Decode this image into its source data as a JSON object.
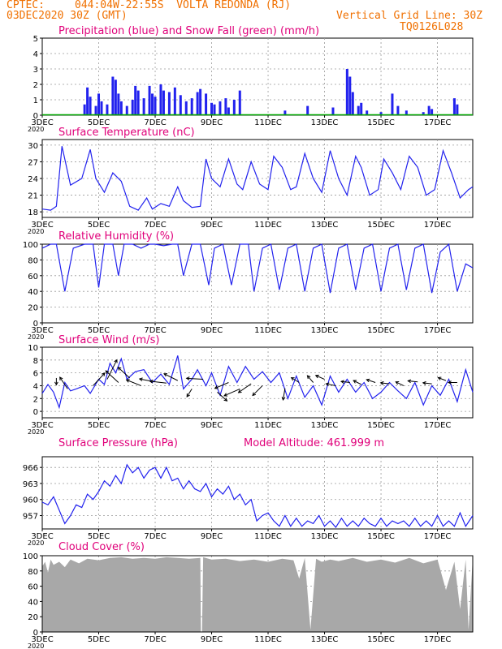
{
  "header": {
    "agency": "CPTEC:",
    "location": "044:04W-22:55S  VOLTA REDONDA (RJ)",
    "run": "03DEC2020 30Z (GMT)",
    "grid_note": "Vertical Grid Line: 30Z",
    "model_code": "TQ0126L028"
  },
  "colors": {
    "header": "#f07000",
    "title": "#e0007a",
    "series": "#2222ee",
    "snow": "#00aa00",
    "cloud": "#a8a8a8",
    "grid": "#999999"
  },
  "x_axis": {
    "ticks": [
      {
        "day": 3,
        "label": "3DEC"
      },
      {
        "day": 5,
        "label": "5DEC"
      },
      {
        "day": 7,
        "label": "7DEC"
      },
      {
        "day": 9,
        "label": "9DEC"
      },
      {
        "day": 11,
        "label": "11DEC"
      },
      {
        "day": 13,
        "label": "13DEC"
      },
      {
        "day": 15,
        "label": "15DEC"
      },
      {
        "day": 17,
        "label": "17DEC"
      }
    ],
    "corner_label": "2020",
    "range_days": [
      3,
      18.25
    ]
  },
  "chart_data": [
    {
      "type": "bar",
      "title": "Precipitation (blue) and Snow Fall (green) (mm/h)",
      "ylim": [
        0,
        5
      ],
      "yticks": [
        0,
        1,
        2,
        3,
        4,
        5
      ],
      "series": [
        {
          "name": "Precipitation",
          "x": [
            4.5,
            4.6,
            4.7,
            4.9,
            5.0,
            5.1,
            5.3,
            5.5,
            5.6,
            5.7,
            5.8,
            6.0,
            6.2,
            6.3,
            6.4,
            6.6,
            6.8,
            6.9,
            7.0,
            7.2,
            7.3,
            7.5,
            7.7,
            7.9,
            8.1,
            8.3,
            8.5,
            8.6,
            8.8,
            9.0,
            9.1,
            9.3,
            9.5,
            9.6,
            9.8,
            10.0,
            11.6,
            12.4,
            13.3,
            13.8,
            13.9,
            14.0,
            14.2,
            14.3,
            14.5,
            15.0,
            15.4,
            15.6,
            15.9,
            16.5,
            16.7,
            16.8,
            17.6,
            17.7
          ],
          "values": [
            0.7,
            1.8,
            1.2,
            0.6,
            1.4,
            0.9,
            0.7,
            2.5,
            2.3,
            1.4,
            0.9,
            0.6,
            1.0,
            1.9,
            1.6,
            1.1,
            1.9,
            1.4,
            1.2,
            2.0,
            1.6,
            1.5,
            1.8,
            1.3,
            0.9,
            1.1,
            1.5,
            1.7,
            1.4,
            0.8,
            0.7,
            0.9,
            1.1,
            0.5,
            1.0,
            1.6,
            0.3,
            0.6,
            0.5,
            3.0,
            2.5,
            1.5,
            0.6,
            0.8,
            0.3,
            0.2,
            1.4,
            0.6,
            0.3,
            0.2,
            0.6,
            0.4,
            1.1,
            0.7
          ]
        },
        {
          "name": "Snow Fall",
          "x": [],
          "values": []
        }
      ]
    },
    {
      "type": "line",
      "title": "Surface Temperature (nC)",
      "ylim": [
        17,
        31
      ],
      "yticks": [
        18,
        21,
        24,
        27,
        30
      ],
      "series": [
        {
          "name": "",
          "x": [
            3.0,
            3.3,
            3.5,
            3.7,
            4.0,
            4.4,
            4.7,
            4.9,
            5.2,
            5.5,
            5.8,
            6.1,
            6.4,
            6.7,
            6.9,
            7.2,
            7.5,
            7.8,
            8.0,
            8.3,
            8.6,
            8.8,
            9.0,
            9.3,
            9.6,
            9.9,
            10.1,
            10.4,
            10.7,
            11.0,
            11.2,
            11.5,
            11.8,
            12.0,
            12.3,
            12.6,
            12.9,
            13.2,
            13.5,
            13.8,
            14.1,
            14.3,
            14.6,
            14.9,
            15.1,
            15.4,
            15.7,
            16.0,
            16.3,
            16.6,
            16.9,
            17.2,
            17.5,
            17.8,
            18.1,
            18.25
          ],
          "values": [
            18.5,
            18.3,
            19.0,
            29.8,
            22.8,
            24.0,
            29.2,
            24.0,
            21.5,
            25.0,
            23.5,
            19.0,
            18.3,
            20.5,
            18.5,
            19.5,
            19.0,
            22.5,
            20.0,
            18.8,
            19.0,
            27.5,
            24.0,
            22.5,
            27.5,
            23.0,
            22.0,
            27.0,
            23.0,
            22.0,
            28.0,
            26.0,
            22.0,
            22.5,
            28.5,
            24.0,
            21.5,
            29.0,
            24.0,
            21.0,
            28.0,
            26.0,
            21.0,
            22.0,
            27.5,
            25.0,
            22.0,
            28.0,
            26.0,
            21.0,
            22.0,
            29.0,
            25.0,
            20.5,
            22.0,
            22.5
          ]
        }
      ]
    },
    {
      "type": "line",
      "title": "Relative Humidity (%)",
      "ylim": [
        0,
        100
      ],
      "yticks": [
        0,
        20,
        40,
        60,
        80,
        100
      ],
      "series": [
        {
          "name": "",
          "x": [
            3.0,
            3.3,
            3.5,
            3.8,
            4.1,
            4.5,
            4.8,
            5.0,
            5.2,
            5.5,
            5.7,
            5.9,
            6.2,
            6.5,
            6.8,
            7.0,
            7.3,
            7.6,
            7.8,
            8.0,
            8.3,
            8.6,
            8.9,
            9.1,
            9.4,
            9.7,
            10.0,
            10.3,
            10.5,
            10.8,
            11.1,
            11.4,
            11.7,
            12.0,
            12.3,
            12.6,
            12.9,
            13.2,
            13.5,
            13.8,
            14.1,
            14.4,
            14.7,
            15.0,
            15.3,
            15.6,
            15.9,
            16.2,
            16.5,
            16.8,
            17.1,
            17.4,
            17.7,
            18.0,
            18.25
          ],
          "values": [
            95,
            100,
            100,
            40,
            95,
            100,
            100,
            45,
            100,
            100,
            60,
            100,
            100,
            95,
            100,
            100,
            98,
            100,
            100,
            60,
            100,
            100,
            48,
            95,
            100,
            48,
            100,
            100,
            40,
            95,
            100,
            42,
            95,
            100,
            40,
            95,
            100,
            38,
            95,
            100,
            42,
            95,
            100,
            40,
            95,
            100,
            42,
            95,
            100,
            38,
            90,
            100,
            40,
            75,
            70
          ]
        }
      ]
    },
    {
      "type": "line",
      "title": "Surface Wind (m/s)",
      "ylim": [
        -1,
        10
      ],
      "yticks": [
        0,
        2,
        4,
        6,
        8,
        10
      ],
      "series": [
        {
          "name": "",
          "x": [
            3.0,
            3.2,
            3.4,
            3.6,
            3.8,
            4.0,
            4.2,
            4.5,
            4.7,
            5.0,
            5.2,
            5.4,
            5.6,
            5.8,
            6.0,
            6.3,
            6.6,
            6.9,
            7.2,
            7.5,
            7.8,
            8.0,
            8.3,
            8.5,
            8.8,
            9.0,
            9.3,
            9.6,
            9.9,
            10.2,
            10.5,
            10.8,
            11.1,
            11.4,
            11.7,
            12.0,
            12.3,
            12.6,
            12.9,
            13.2,
            13.5,
            13.8,
            14.1,
            14.4,
            14.7,
            15.0,
            15.3,
            15.6,
            15.9,
            16.2,
            16.5,
            16.8,
            17.1,
            17.4,
            17.7,
            18.0,
            18.25
          ],
          "values": [
            2.8,
            4.2,
            3.0,
            0.6,
            4.5,
            3.2,
            3.5,
            4.0,
            2.8,
            5.0,
            4.2,
            7.5,
            6.0,
            8.2,
            5.0,
            6.2,
            6.5,
            4.5,
            5.8,
            4.2,
            8.7,
            3.5,
            5.0,
            6.5,
            4.0,
            6.0,
            2.5,
            7.0,
            4.5,
            7.0,
            5.0,
            6.2,
            4.5,
            6.0,
            2.0,
            5.5,
            2.2,
            4.0,
            1.0,
            5.5,
            3.0,
            5.0,
            3.0,
            4.5,
            2.0,
            3.0,
            4.5,
            3.2,
            2.0,
            4.5,
            1.0,
            4.0,
            2.5,
            5.0,
            1.5,
            6.5,
            3.0
          ]
        }
      ],
      "arrows": [
        [
          3.5,
          0.0,
          -0.7,
          5.2
        ],
        [
          3.9,
          -0.8,
          1.2,
          3.5
        ],
        [
          4.8,
          1.2,
          1.3,
          4.0
        ],
        [
          5.3,
          1.0,
          2.0,
          5.0
        ],
        [
          5.7,
          -1.3,
          1.2,
          4.5
        ],
        [
          6.1,
          -1.2,
          1.1,
          5.2
        ],
        [
          6.5,
          -1.5,
          0.6,
          4.0
        ],
        [
          7.0,
          -1.6,
          0.3,
          4.6
        ],
        [
          7.4,
          -1.7,
          0.2,
          4.4
        ],
        [
          7.8,
          -1.4,
          0.7,
          4.8
        ],
        [
          8.3,
          -0.5,
          -0.8,
          3.5
        ],
        [
          8.7,
          -1.7,
          0.1,
          5.0
        ],
        [
          9.2,
          1.0,
          -0.9,
          3.0
        ],
        [
          9.6,
          -1.4,
          -0.6,
          4.5
        ],
        [
          10.0,
          -1.6,
          -0.7,
          3.5
        ],
        [
          10.4,
          -1.3,
          -0.9,
          4.3
        ],
        [
          10.8,
          -1.0,
          -1.0,
          4.0
        ],
        [
          11.6,
          -0.2,
          -1.2,
          3.6
        ],
        [
          12.1,
          -0.8,
          0.5,
          4.5
        ],
        [
          12.6,
          -0.6,
          0.7,
          4.5
        ],
        [
          13.0,
          -0.9,
          0.4,
          5.0
        ],
        [
          13.4,
          -1.0,
          0.2,
          4.0
        ],
        [
          13.9,
          -0.9,
          0.1,
          4.5
        ],
        [
          14.3,
          -0.8,
          0.4,
          4.2
        ],
        [
          14.8,
          -0.9,
          0.3,
          4.5
        ],
        [
          15.3,
          -0.9,
          0.1,
          4.3
        ],
        [
          15.8,
          -0.8,
          0.4,
          4.0
        ],
        [
          16.3,
          -1.0,
          0.1,
          4.6
        ],
        [
          16.8,
          -0.9,
          0.1,
          4.3
        ],
        [
          17.3,
          -0.8,
          0.3,
          4.8
        ],
        [
          17.7,
          -0.9,
          0.0,
          4.5
        ]
      ]
    },
    {
      "type": "line",
      "title": "Surface Pressure (hPa)",
      "annotation": "Model Altitude: 461.999 m",
      "ylim": [
        954.5,
        968
      ],
      "yticks": [
        957,
        960,
        963,
        966
      ],
      "series": [
        {
          "name": "",
          "x": [
            3.0,
            3.2,
            3.4,
            3.6,
            3.8,
            4.0,
            4.2,
            4.4,
            4.6,
            4.8,
            5.0,
            5.2,
            5.4,
            5.6,
            5.8,
            6.0,
            6.2,
            6.4,
            6.6,
            6.8,
            7.0,
            7.2,
            7.4,
            7.6,
            7.8,
            8.0,
            8.2,
            8.4,
            8.6,
            8.8,
            9.0,
            9.2,
            9.4,
            9.6,
            9.8,
            10.0,
            10.2,
            10.4,
            10.6,
            10.8,
            11.0,
            11.2,
            11.4,
            11.6,
            11.8,
            12.0,
            12.2,
            12.4,
            12.6,
            12.8,
            13.0,
            13.2,
            13.4,
            13.6,
            13.8,
            14.0,
            14.2,
            14.4,
            14.6,
            14.8,
            15.0,
            15.2,
            15.4,
            15.6,
            15.8,
            16.0,
            16.2,
            16.4,
            16.6,
            16.8,
            17.0,
            17.2,
            17.4,
            17.6,
            17.8,
            18.0,
            18.25
          ],
          "values": [
            959.5,
            959,
            960.5,
            958,
            955.5,
            957,
            959,
            958.5,
            961,
            960,
            961.5,
            963.5,
            962.5,
            964.5,
            963,
            966.5,
            965,
            966,
            964,
            965.5,
            966,
            964,
            966,
            963.5,
            964,
            962,
            963.5,
            962,
            961.5,
            963,
            960.5,
            962,
            961,
            962.5,
            960,
            961,
            959,
            960,
            956,
            957,
            957.5,
            956,
            955,
            957,
            955,
            956.5,
            955,
            956,
            955.5,
            957,
            955,
            956,
            954.8,
            956.5,
            955,
            956,
            955,
            956.5,
            955.5,
            955,
            956.5,
            955,
            956,
            955.5,
            956,
            955,
            956.5,
            955,
            956,
            955,
            957,
            955,
            956,
            955,
            957.5,
            955,
            957
          ]
        }
      ]
    },
    {
      "type": "area",
      "title": "Cloud Cover (%)",
      "ylim": [
        0,
        100
      ],
      "yticks": [
        0,
        20,
        40,
        60,
        80,
        100
      ],
      "series": [
        {
          "name": "",
          "x": [
            3.0,
            3.1,
            3.2,
            3.3,
            3.4,
            3.6,
            3.8,
            4.0,
            4.3,
            4.6,
            5.0,
            5.4,
            5.8,
            6.2,
            6.6,
            7.0,
            7.4,
            7.8,
            8.2,
            8.6,
            8.62,
            8.66,
            8.7,
            9.0,
            9.5,
            10.0,
            10.5,
            11.0,
            11.5,
            11.9,
            12.1,
            12.3,
            12.5,
            12.7,
            12.9,
            13.2,
            13.5,
            14.0,
            14.5,
            15.0,
            15.5,
            16.0,
            16.5,
            17.0,
            17.3,
            17.6,
            17.8,
            18.0,
            18.1,
            18.25
          ],
          "values": [
            86,
            92,
            78,
            95,
            88,
            92,
            85,
            95,
            90,
            96,
            94,
            97,
            98,
            96,
            97,
            96,
            98,
            97,
            96,
            97,
            0,
            0,
            98,
            95,
            96,
            93,
            95,
            92,
            96,
            94,
            70,
            97,
            3,
            96,
            92,
            95,
            93,
            97,
            92,
            95,
            91,
            97,
            90,
            95,
            55,
            92,
            30,
            95,
            3,
            97
          ]
        }
      ]
    }
  ]
}
